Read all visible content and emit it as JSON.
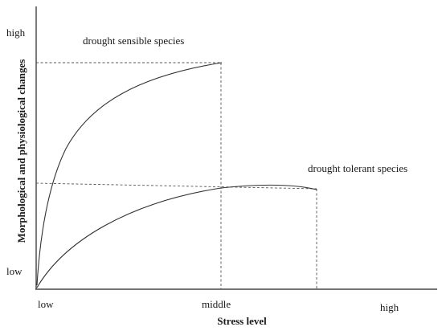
{
  "figure": {
    "y_axis_title": "Morphological and physiological changes",
    "x_axis_title": "Stress level",
    "y_ticks": [
      "high",
      "low"
    ],
    "x_ticks": [
      "low",
      "middle",
      "high"
    ]
  },
  "chart_data": {
    "type": "line",
    "xlabel": "Stress level",
    "ylabel": "Morphological and physiological changes",
    "x_categories": [
      "low",
      "middle",
      "high"
    ],
    "y_categories": [
      "low",
      "high"
    ],
    "series": [
      {
        "name": "drought sensible species"
      },
      {
        "name": "drought tolerant species"
      }
    ]
  }
}
